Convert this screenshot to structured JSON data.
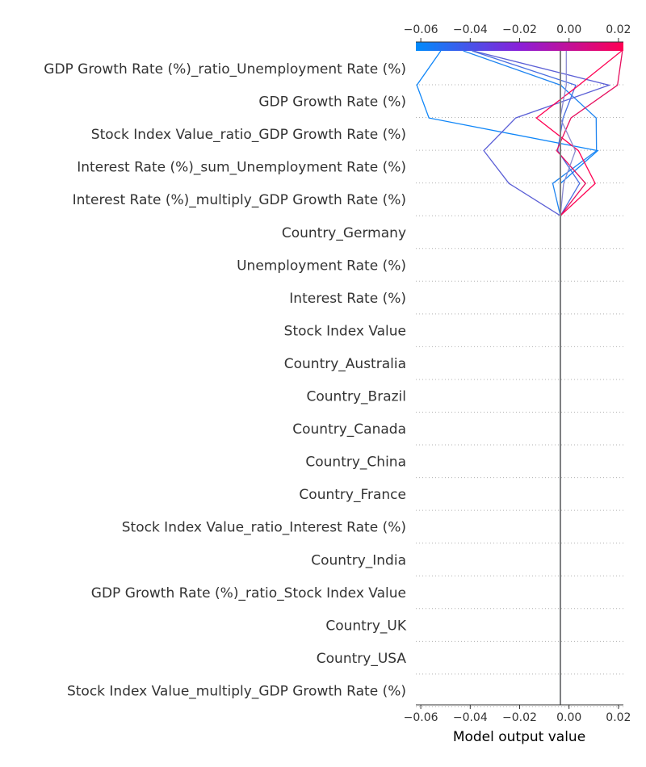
{
  "chart_data": {
    "type": "line",
    "subtype": "shap-decision-plot",
    "xlabel": "Model output value",
    "xlim": [
      -0.062,
      0.022
    ],
    "x_ticks": [
      "−0.06",
      "−0.04",
      "−0.02",
      "0.00",
      "0.02"
    ],
    "x_tick_values": [
      -0.06,
      -0.04,
      -0.02,
      0.0,
      0.02
    ],
    "base_value": -0.0035,
    "colorbar": {
      "from": "#008bfb",
      "to": "#ff0052"
    },
    "base_line_color": "#808080",
    "grid": "dotted",
    "features": [
      "GDP Growth Rate (%)_ratio_Unemployment Rate (%)",
      "GDP Growth Rate (%)",
      "Stock Index Value_ratio_GDP Growth Rate (%)",
      "Interest Rate (%)_sum_Unemployment Rate (%)",
      "Interest Rate (%)_multiply_GDP Growth Rate (%)",
      "Country_Germany",
      "Unemployment Rate (%)",
      "Interest Rate (%)",
      "Stock Index Value",
      "Country_Australia",
      "Country_Brazil",
      "Country_Canada",
      "Country_China",
      "Country_France",
      "Stock Index Value_ratio_Interest Rate (%)",
      "Country_India",
      "GDP Growth Rate (%)_ratio_Stock Index Value",
      "Country_UK",
      "Country_USA",
      "Stock Index Value_multiply_GDP Growth Rate (%)"
    ],
    "series": [
      {
        "output": -0.0519,
        "path": [
          -0.0035,
          -0.0035,
          0.0116,
          -0.0567,
          -0.0616,
          -0.0519
        ],
        "color": "#0f86f8"
      },
      {
        "output": -0.0428,
        "path": [
          -0.0035,
          -0.0066,
          0.0111,
          0.011,
          -0.0034,
          -0.0428
        ],
        "color": "#1f84f0"
      },
      {
        "output": -0.0389,
        "path": [
          -0.0035,
          -0.0243,
          -0.0345,
          -0.0216,
          0.0162,
          -0.0389
        ],
        "color": "#5b5fd6"
      },
      {
        "output": -0.0393,
        "path": [
          -0.0035,
          0.0043,
          -0.0046,
          -0.0024,
          0.0027,
          -0.0393
        ],
        "color": "#4a6ee0"
      },
      {
        "output": 0.0213,
        "path": [
          -0.0035,
          0.0106,
          0.0038,
          -0.0132,
          0.004,
          0.0213
        ],
        "color": "#ff0052"
      },
      {
        "output": 0.0216,
        "path": [
          -0.0035,
          0.0067,
          -0.005,
          0.0008,
          0.0196,
          0.0216
        ],
        "color": "#e6105f"
      },
      {
        "output": -0.0011,
        "path": [
          -0.0035,
          -0.0022,
          0.0026,
          -0.0036,
          -0.0011,
          -0.0011
        ],
        "color": "#8a8ad0"
      }
    ]
  }
}
